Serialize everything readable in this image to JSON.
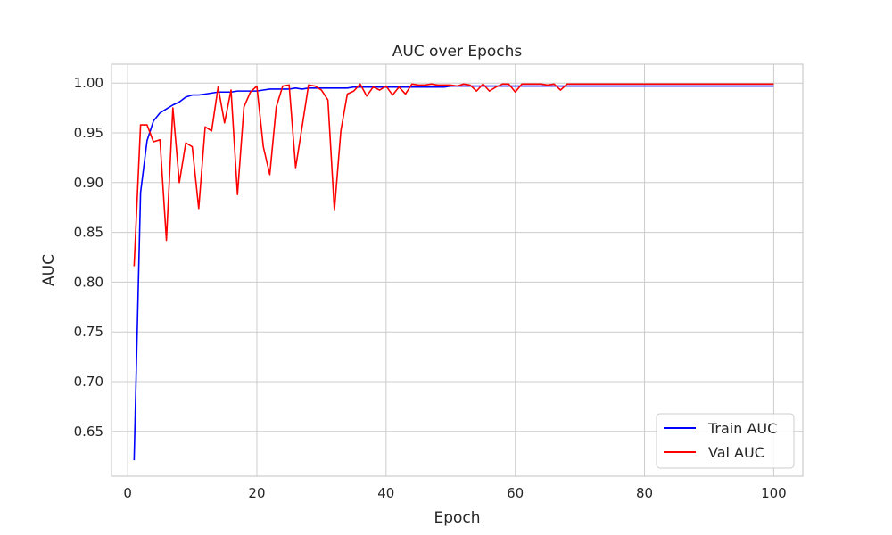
{
  "chart_data": {
    "type": "line",
    "title": "AUC over Epochs",
    "xlabel": "Epoch",
    "ylabel": "AUC",
    "xlim": [
      -2.5,
      104.5
    ],
    "ylim": [
      0.605,
      1.019
    ],
    "xticks": [
      0,
      20,
      40,
      60,
      80,
      100
    ],
    "yticks": [
      0.65,
      0.7,
      0.75,
      0.8,
      0.85,
      0.9,
      0.95,
      1.0
    ],
    "xtick_labels": [
      "0",
      "20",
      "40",
      "60",
      "80",
      "100"
    ],
    "ytick_labels": [
      "0.65",
      "0.70",
      "0.75",
      "0.80",
      "0.85",
      "0.90",
      "0.95",
      "1.00"
    ],
    "grid": true,
    "legend_position": "bottom-right",
    "series": [
      {
        "name": "Train AUC",
        "color": "#0000ff",
        "x": [
          1,
          2,
          3,
          4,
          5,
          6,
          7,
          8,
          9,
          10,
          11,
          12,
          13,
          14,
          15,
          16,
          17,
          18,
          19,
          20,
          21,
          22,
          23,
          24,
          25,
          26,
          27,
          28,
          29,
          30,
          31,
          32,
          33,
          34,
          35,
          36,
          37,
          38,
          39,
          40,
          41,
          42,
          43,
          44,
          45,
          46,
          47,
          48,
          49,
          50,
          51,
          52,
          53,
          54,
          55,
          56,
          57,
          58,
          59,
          60,
          61,
          62,
          63,
          64,
          65,
          66,
          67,
          68,
          69,
          70,
          71,
          72,
          73,
          74,
          75,
          76,
          77,
          78,
          79,
          80,
          81,
          82,
          83,
          84,
          85,
          86,
          87,
          88,
          89,
          90,
          91,
          92,
          93,
          94,
          95,
          96,
          97,
          98,
          99,
          100
        ],
        "values": [
          0.621,
          0.89,
          0.942,
          0.962,
          0.97,
          0.974,
          0.978,
          0.981,
          0.986,
          0.988,
          0.988,
          0.989,
          0.99,
          0.991,
          0.991,
          0.991,
          0.992,
          0.992,
          0.992,
          0.992,
          0.993,
          0.994,
          0.994,
          0.994,
          0.994,
          0.995,
          0.994,
          0.995,
          0.995,
          0.995,
          0.995,
          0.995,
          0.995,
          0.995,
          0.996,
          0.996,
          0.996,
          0.996,
          0.996,
          0.996,
          0.996,
          0.996,
          0.996,
          0.996,
          0.996,
          0.996,
          0.996,
          0.996,
          0.996,
          0.997,
          0.997,
          0.997,
          0.997,
          0.997,
          0.997,
          0.997,
          0.997,
          0.997,
          0.997,
          0.997,
          0.997,
          0.997,
          0.997,
          0.997,
          0.997,
          0.997,
          0.997,
          0.997,
          0.997,
          0.997,
          0.997,
          0.997,
          0.997,
          0.997,
          0.997,
          0.997,
          0.997,
          0.997,
          0.997,
          0.997,
          0.997,
          0.997,
          0.997,
          0.997,
          0.997,
          0.997,
          0.997,
          0.997,
          0.997,
          0.997,
          0.997,
          0.997,
          0.997,
          0.997,
          0.997,
          0.997,
          0.997,
          0.997,
          0.997,
          0.997
        ]
      },
      {
        "name": "Val AUC",
        "color": "#ff0000",
        "x": [
          1,
          2,
          3,
          4,
          5,
          6,
          7,
          8,
          9,
          10,
          11,
          12,
          13,
          14,
          15,
          16,
          17,
          18,
          19,
          20,
          21,
          22,
          23,
          24,
          25,
          26,
          27,
          28,
          29,
          30,
          31,
          32,
          33,
          34,
          35,
          36,
          37,
          38,
          39,
          40,
          41,
          42,
          43,
          44,
          45,
          46,
          47,
          48,
          49,
          50,
          51,
          52,
          53,
          54,
          55,
          56,
          57,
          58,
          59,
          60,
          61,
          62,
          63,
          64,
          65,
          66,
          67,
          68,
          69,
          70,
          71,
          72,
          73,
          74,
          75,
          76,
          77,
          78,
          79,
          80,
          81,
          82,
          83,
          84,
          85,
          86,
          87,
          88,
          89,
          90,
          91,
          92,
          93,
          94,
          95,
          96,
          97,
          98,
          99,
          100
        ],
        "values": [
          0.816,
          0.958,
          0.958,
          0.941,
          0.943,
          0.842,
          0.975,
          0.9,
          0.94,
          0.936,
          0.874,
          0.956,
          0.952,
          0.996,
          0.96,
          0.993,
          0.888,
          0.976,
          0.991,
          0.997,
          0.936,
          0.908,
          0.976,
          0.997,
          0.998,
          0.915,
          0.956,
          0.998,
          0.997,
          0.993,
          0.983,
          0.872,
          0.952,
          0.989,
          0.992,
          0.999,
          0.987,
          0.996,
          0.993,
          0.997,
          0.988,
          0.996,
          0.989,
          0.999,
          0.998,
          0.998,
          0.999,
          0.998,
          0.998,
          0.998,
          0.997,
          0.999,
          0.998,
          0.992,
          0.999,
          0.992,
          0.996,
          0.999,
          0.999,
          0.991,
          0.999,
          0.999,
          0.999,
          0.999,
          0.998,
          0.999,
          0.993,
          0.999,
          0.999,
          0.999,
          0.999,
          0.999,
          0.999,
          0.999,
          0.999,
          0.999,
          0.999,
          0.999,
          0.999,
          0.999,
          0.999,
          0.999,
          0.999,
          0.999,
          0.999,
          0.999,
          0.999,
          0.999,
          0.999,
          0.999,
          0.999,
          0.999,
          0.999,
          0.999,
          0.999,
          0.999,
          0.999,
          0.999,
          0.999,
          0.999
        ]
      }
    ]
  }
}
